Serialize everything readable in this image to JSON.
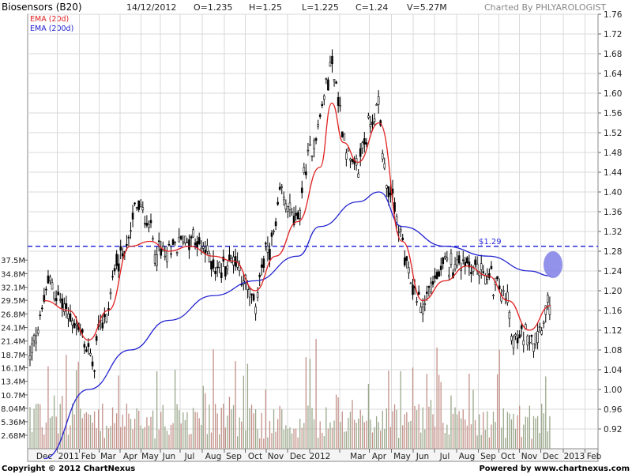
{
  "header": {
    "title": "Biosensors (B20)",
    "date": "14/12/2012",
    "open": "O=1.235",
    "high": "H=1.25",
    "low": "L=1.225",
    "close": "C=1.24",
    "volume": "V=5.27M",
    "charted_by": "Charted By PHLYAROLOGIST"
  },
  "legend": {
    "ema20": "EMA (20d)",
    "ema200": "EMA (200d)"
  },
  "colors": {
    "ema20": "#e02020",
    "ema200": "#2020d0",
    "candle": "#000000",
    "volume_up": "#9aa78a",
    "volume_down": "#c39088",
    "grid": "#d8d8d8",
    "hline": "#2a2ae0",
    "highlight": "#7f7fe8"
  },
  "footer": {
    "copyright": "Copyright © 2012 ChartNexus",
    "powered": "Powered by www.chartnexus.com"
  },
  "chart_data": {
    "type": "candlestick",
    "x_ticks": [
      "Dec",
      "2011",
      "Feb",
      "Mar",
      "Apr",
      "May",
      "Jun",
      "Jul",
      "Aug",
      "Sep",
      "Oct",
      "Nov",
      "Dec",
      "2012",
      "Mar",
      "Apr",
      "May",
      "Jun",
      "Jul",
      "Aug",
      "Sep",
      "Oct",
      "Nov",
      "Dec",
      "2013",
      "Feb"
    ],
    "price_ticks": [
      1.76,
      1.72,
      1.68,
      1.64,
      1.6,
      1.56,
      1.52,
      1.48,
      1.44,
      1.4,
      1.36,
      1.32,
      1.28,
      1.24,
      1.2,
      1.16,
      1.12,
      1.08,
      1.04,
      1.0,
      0.96,
      0.92
    ],
    "price_range": [
      0.88,
      1.76
    ],
    "volume_ticks": [
      "37.5M",
      "34.8M",
      "32.1M",
      "29.5M",
      "26.8M",
      "24.1M",
      "21.4M",
      "18.7M",
      "16.1M",
      "13.4M",
      "10.7M",
      "8.04M",
      "5.36M",
      "2.68M"
    ],
    "volume_range": [
      0,
      40.2
    ],
    "horizontal_line": {
      "value": 1.29,
      "label": "$1.29"
    },
    "highlight": {
      "x": "Dec 2012",
      "value": 1.24
    },
    "price_path": [
      [
        "Dec 2010",
        1.18
      ],
      [
        "Dec 2010",
        1.22
      ],
      [
        "2011",
        1.15
      ],
      [
        "Jan 2011",
        1.13
      ],
      [
        "Feb 2011",
        1.08
      ],
      [
        "Feb 2011",
        1.04
      ],
      [
        "Feb 2011",
        1.12
      ],
      [
        "Mar 2011",
        1.16
      ],
      [
        "Mar 2011",
        1.23
      ],
      [
        "Apr 2011",
        1.31
      ],
      [
        "Apr 2011",
        1.38
      ],
      [
        "May 2011",
        1.33
      ],
      [
        "May 2011",
        1.28
      ],
      [
        "Jun 2011",
        1.27
      ],
      [
        "Jun 2011",
        1.29
      ],
      [
        "Jul 2011",
        1.31
      ],
      [
        "Aug 2011",
        1.26
      ],
      [
        "Aug 2011",
        1.24
      ],
      [
        "Sep 2011",
        1.27
      ],
      [
        "Sep 2011",
        1.25
      ],
      [
        "Oct 2011",
        1.16
      ],
      [
        "Oct 2011",
        1.24
      ],
      [
        "Nov 2011",
        1.32
      ],
      [
        "Nov 2011",
        1.4
      ],
      [
        "Dec 2011",
        1.33
      ],
      [
        "Dec 2011",
        1.42
      ],
      [
        "2012",
        1.55
      ],
      [
        "Jan 2012",
        1.67
      ],
      [
        "Feb 2012",
        1.52
      ],
      [
        "Feb 2012",
        1.47
      ],
      [
        "Mar 2012",
        1.44
      ],
      [
        "Mar 2012",
        1.5
      ],
      [
        "Apr 2012",
        1.58
      ],
      [
        "Apr 2012",
        1.45
      ],
      [
        "May 2012",
        1.3
      ],
      [
        "May 2012",
        1.24
      ],
      [
        "Jun 2012",
        1.16
      ],
      [
        "Jun 2012",
        1.2
      ],
      [
        "Jul 2012",
        1.25
      ],
      [
        "Aug 2012",
        1.26
      ],
      [
        "Aug 2012",
        1.25
      ],
      [
        "Sep 2012",
        1.23
      ],
      [
        "Oct 2012",
        1.18
      ],
      [
        "Oct 2012",
        1.09
      ],
      [
        "Nov 2012",
        1.12
      ],
      [
        "Nov 2012",
        1.1
      ],
      [
        "Dec 2012",
        1.18
      ],
      [
        "Dec 2012",
        1.24
      ]
    ],
    "series": [
      {
        "name": "EMA (20d)",
        "values": [
          [
            "Dec 2010",
            1.18
          ],
          [
            "2011",
            1.16
          ],
          [
            "Feb 2011",
            1.1
          ],
          [
            "Mar 2011",
            1.16
          ],
          [
            "Apr 2011",
            1.29
          ],
          [
            "May 2011",
            1.3
          ],
          [
            "Jun 2011",
            1.28
          ],
          [
            "Jul 2011",
            1.29
          ],
          [
            "Aug 2011",
            1.27
          ],
          [
            "Sep 2011",
            1.26
          ],
          [
            "Oct 2011",
            1.2
          ],
          [
            "Nov 2011",
            1.27
          ],
          [
            "Dec 2011",
            1.34
          ],
          [
            "2012",
            1.45
          ],
          [
            "Jan 2012",
            1.58
          ],
          [
            "Feb 2012",
            1.5
          ],
          [
            "Mar 2012",
            1.46
          ],
          [
            "Apr 2012",
            1.54
          ],
          [
            "May 2012",
            1.3
          ],
          [
            "Jun 2012",
            1.18
          ],
          [
            "Jul 2012",
            1.22
          ],
          [
            "Aug 2012",
            1.25
          ],
          [
            "Sep 2012",
            1.23
          ],
          [
            "Oct 2012",
            1.18
          ],
          [
            "Nov 2012",
            1.12
          ],
          [
            "Dec 2012",
            1.17
          ]
        ]
      },
      {
        "name": "EMA (200d)",
        "values": [
          [
            "Dec 2010",
            0.86
          ],
          [
            "Feb 2011",
            1.0
          ],
          [
            "Apr 2011",
            1.08
          ],
          [
            "Jun 2011",
            1.14
          ],
          [
            "Aug 2011",
            1.19
          ],
          [
            "Oct 2011",
            1.22
          ],
          [
            "Dec 2011",
            1.27
          ],
          [
            "2012",
            1.33
          ],
          [
            "Mar 2012",
            1.38
          ],
          [
            "Apr 2012",
            1.4
          ],
          [
            "May 2012",
            1.33
          ],
          [
            "Jul 2012",
            1.29
          ],
          [
            "Sep 2012",
            1.27
          ],
          [
            "Nov 2012",
            1.24
          ],
          [
            "Dec 2012",
            1.23
          ]
        ]
      }
    ]
  }
}
